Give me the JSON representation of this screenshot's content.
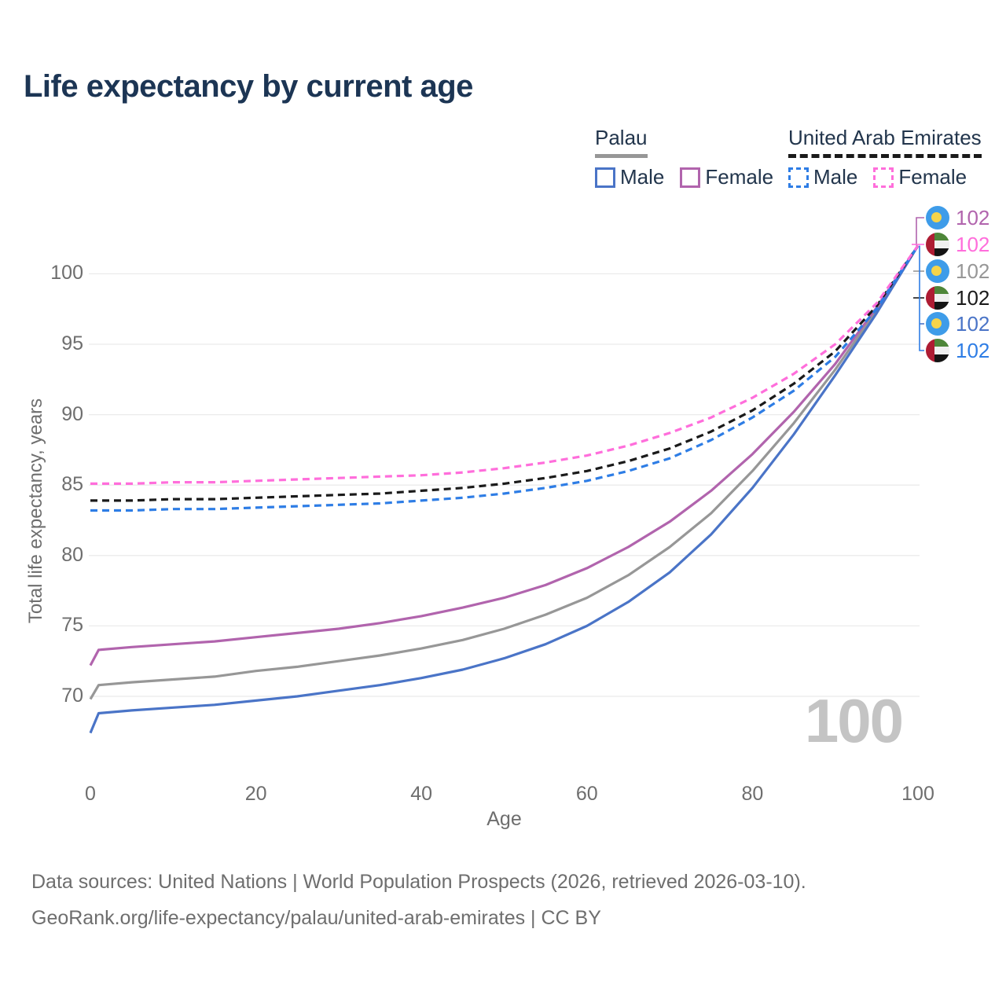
{
  "title": "Life expectancy by current age",
  "legend": {
    "groups": [
      {
        "country": "Palau",
        "line_style": "solid",
        "items": [
          {
            "label": "Male",
            "color_key": "palau_male"
          },
          {
            "label": "Female",
            "color_key": "palau_female"
          }
        ]
      },
      {
        "country": "United Arab Emirates",
        "line_style": "dashed",
        "items": [
          {
            "label": "Male",
            "color_key": "uae_male"
          },
          {
            "label": "Female",
            "color_key": "uae_female"
          }
        ]
      }
    ]
  },
  "colors": {
    "palau_male": "#4a74c7",
    "palau_female": "#b164ad",
    "palau_total": "#979797",
    "uae_male": "#2e7de5",
    "uae_female": "#ff6edb",
    "uae_total": "#1a1a1a",
    "title_text": "#1c3554",
    "axis_text": "#6e6e6e",
    "grid": "#ebebeb",
    "watermark": "#c4c4c4"
  },
  "chart_data": {
    "type": "line",
    "title": "Life expectancy by current age",
    "xlabel": "Age",
    "ylabel": "Total life expectancy, years",
    "xlim": [
      0,
      100
    ],
    "ylim": [
      66,
      103
    ],
    "x_ticks": [
      0,
      20,
      40,
      60,
      80,
      100
    ],
    "y_ticks": [
      70,
      75,
      80,
      85,
      90,
      95,
      100
    ],
    "grid": "horizontal",
    "legend_position": "top-right",
    "x": [
      0,
      1,
      5,
      10,
      15,
      20,
      25,
      30,
      35,
      40,
      45,
      50,
      55,
      60,
      65,
      70,
      75,
      80,
      85,
      90,
      95,
      100
    ],
    "series": [
      {
        "name": "Palau Female",
        "country": "palau",
        "sex": "female",
        "color_key": "palau_female",
        "dash": "solid",
        "end_label": "102",
        "values": [
          72.2,
          73.3,
          73.5,
          73.7,
          73.9,
          74.2,
          74.5,
          74.8,
          75.2,
          75.7,
          76.3,
          77.0,
          77.9,
          79.1,
          80.6,
          82.4,
          84.6,
          87.2,
          90.2,
          93.6,
          97.6,
          102
        ]
      },
      {
        "name": "United Arab Emirates Female",
        "country": "uae",
        "sex": "female",
        "color_key": "uae_female",
        "dash": "dashed",
        "end_label": "102",
        "values": [
          85.1,
          85.1,
          85.1,
          85.2,
          85.2,
          85.3,
          85.4,
          85.5,
          85.6,
          85.7,
          85.9,
          86.2,
          86.6,
          87.1,
          87.8,
          88.7,
          89.8,
          91.2,
          92.9,
          95.0,
          97.9,
          102
        ]
      },
      {
        "name": "Palau Both sexes",
        "country": "palau",
        "sex": "total",
        "color_key": "palau_total",
        "dash": "solid",
        "end_label": "102",
        "values": [
          69.8,
          70.8,
          71.0,
          71.2,
          71.4,
          71.8,
          72.1,
          72.5,
          72.9,
          73.4,
          74.0,
          74.8,
          75.8,
          77.0,
          78.6,
          80.6,
          83.0,
          86.0,
          89.4,
          93.2,
          97.4,
          102
        ]
      },
      {
        "name": "United Arab Emirates Both sexes",
        "country": "uae",
        "sex": "total",
        "color_key": "uae_total",
        "dash": "dashed",
        "end_label": "102",
        "values": [
          83.9,
          83.9,
          83.9,
          84.0,
          84.0,
          84.1,
          84.2,
          84.3,
          84.4,
          84.6,
          84.8,
          85.1,
          85.5,
          86.0,
          86.7,
          87.6,
          88.8,
          90.3,
          92.2,
          94.5,
          97.7,
          102
        ]
      },
      {
        "name": "Palau Male",
        "country": "palau",
        "sex": "male",
        "color_key": "palau_male",
        "dash": "solid",
        "end_label": "102",
        "values": [
          67.4,
          68.8,
          69.0,
          69.2,
          69.4,
          69.7,
          70.0,
          70.4,
          70.8,
          71.3,
          71.9,
          72.7,
          73.7,
          75.0,
          76.7,
          78.8,
          81.5,
          84.8,
          88.6,
          92.8,
          97.2,
          102
        ]
      },
      {
        "name": "United Arab Emirates Male",
        "country": "uae",
        "sex": "male",
        "color_key": "uae_male",
        "dash": "dashed",
        "end_label": "102",
        "values": [
          83.2,
          83.2,
          83.2,
          83.3,
          83.3,
          83.4,
          83.5,
          83.6,
          83.7,
          83.9,
          84.1,
          84.4,
          84.8,
          85.3,
          86.0,
          86.9,
          88.2,
          89.8,
          91.7,
          94.1,
          97.5,
          102
        ]
      }
    ]
  },
  "watermark": "100",
  "footer": {
    "line1": "Data sources: United Nations | World Population Prospects (2026, retrieved 2026-03-10).",
    "line2": "GeoRank.org/life-expectancy/palau/united-arab-emirates | CC BY"
  }
}
